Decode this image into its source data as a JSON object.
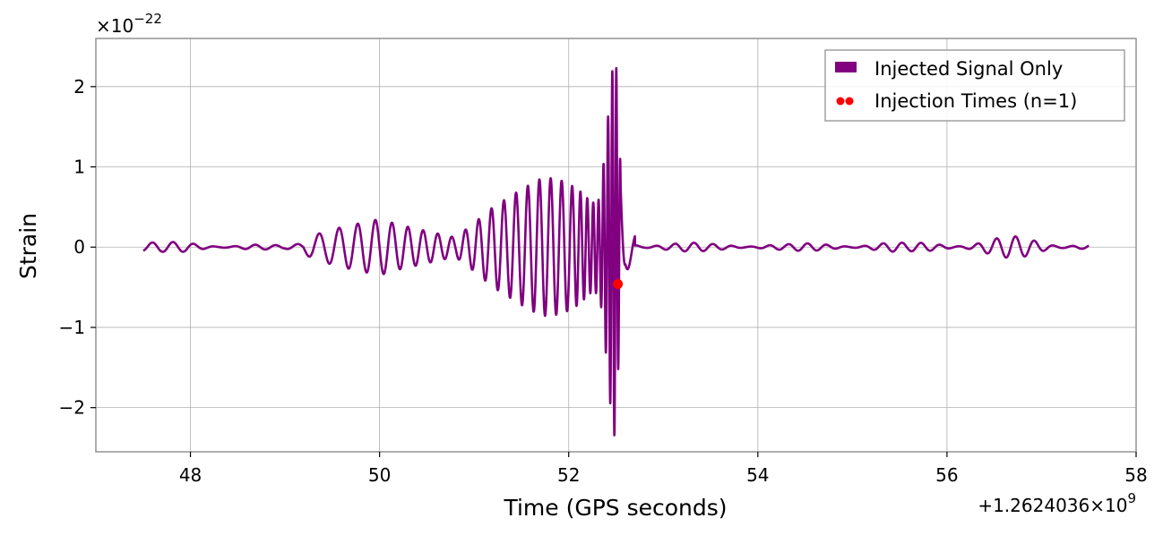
{
  "chart_data": {
    "type": "line",
    "title": "",
    "xlabel": "Time (GPS seconds)",
    "ylabel": "Strain",
    "x_offset_label": "+1.2624036×10",
    "x_offset_exponent": "9",
    "y_multiplier_label": "×10",
    "y_multiplier_exponent": "−22",
    "xlim": [
      47.0,
      58.0
    ],
    "ylim": [
      -2.55,
      2.6
    ],
    "xticks": [
      48,
      50,
      52,
      54,
      56,
      58
    ],
    "xtick_labels": [
      "48",
      "50",
      "52",
      "54",
      "56",
      "58"
    ],
    "yticks": [
      -2,
      -1,
      0,
      1,
      2
    ],
    "ytick_labels": [
      "−2",
      "−1",
      "0",
      "1",
      "2"
    ],
    "grid": true,
    "legend": {
      "placement": "top-right",
      "entries": [
        "Injected Signal Only",
        "Injection Times (n=1)"
      ]
    },
    "series": [
      {
        "name": "Injected Signal Only",
        "color": "#800080",
        "x_range": [
          47.5,
          57.5
        ],
        "envelope": {
          "x": [
            47.5,
            47.55,
            47.7,
            48.0,
            48.3,
            48.6,
            48.8,
            49.0,
            49.2,
            49.3,
            49.6,
            49.8,
            50.0,
            50.2,
            50.5,
            50.8,
            51.0,
            51.2,
            51.5,
            51.7,
            51.8,
            51.95,
            52.1,
            52.25,
            52.33,
            52.4,
            52.45,
            52.48,
            52.5,
            52.53,
            52.6,
            52.8,
            53.1,
            53.5,
            53.9,
            54.3,
            54.8,
            55.2,
            55.6,
            56.0,
            56.4,
            56.8,
            57.2,
            57.45,
            57.5
          ],
          "amplitude": [
            0.08,
            0.08,
            0.06,
            0.07,
            0.06,
            0.05,
            0.03,
            0.02,
            0.08,
            0.15,
            0.25,
            0.3,
            0.35,
            0.28,
            0.2,
            0.12,
            0.3,
            0.5,
            0.72,
            0.85,
            0.86,
            0.82,
            0.72,
            0.55,
            0.6,
            1.4,
            2.1,
            2.35,
            2.35,
            1.3,
            0.3,
            0.08,
            0.06,
            0.05,
            0.07,
            0.04,
            0.06,
            0.08,
            0.05,
            0.1,
            0.12,
            0.14,
            0.12,
            0.05,
            0.05
          ]
        }
      },
      {
        "name": "Injection Times (n=1)",
        "type": "scatter",
        "color": "#ff0000",
        "points": [
          {
            "x": 52.52,
            "y": -0.46
          }
        ]
      }
    ]
  }
}
